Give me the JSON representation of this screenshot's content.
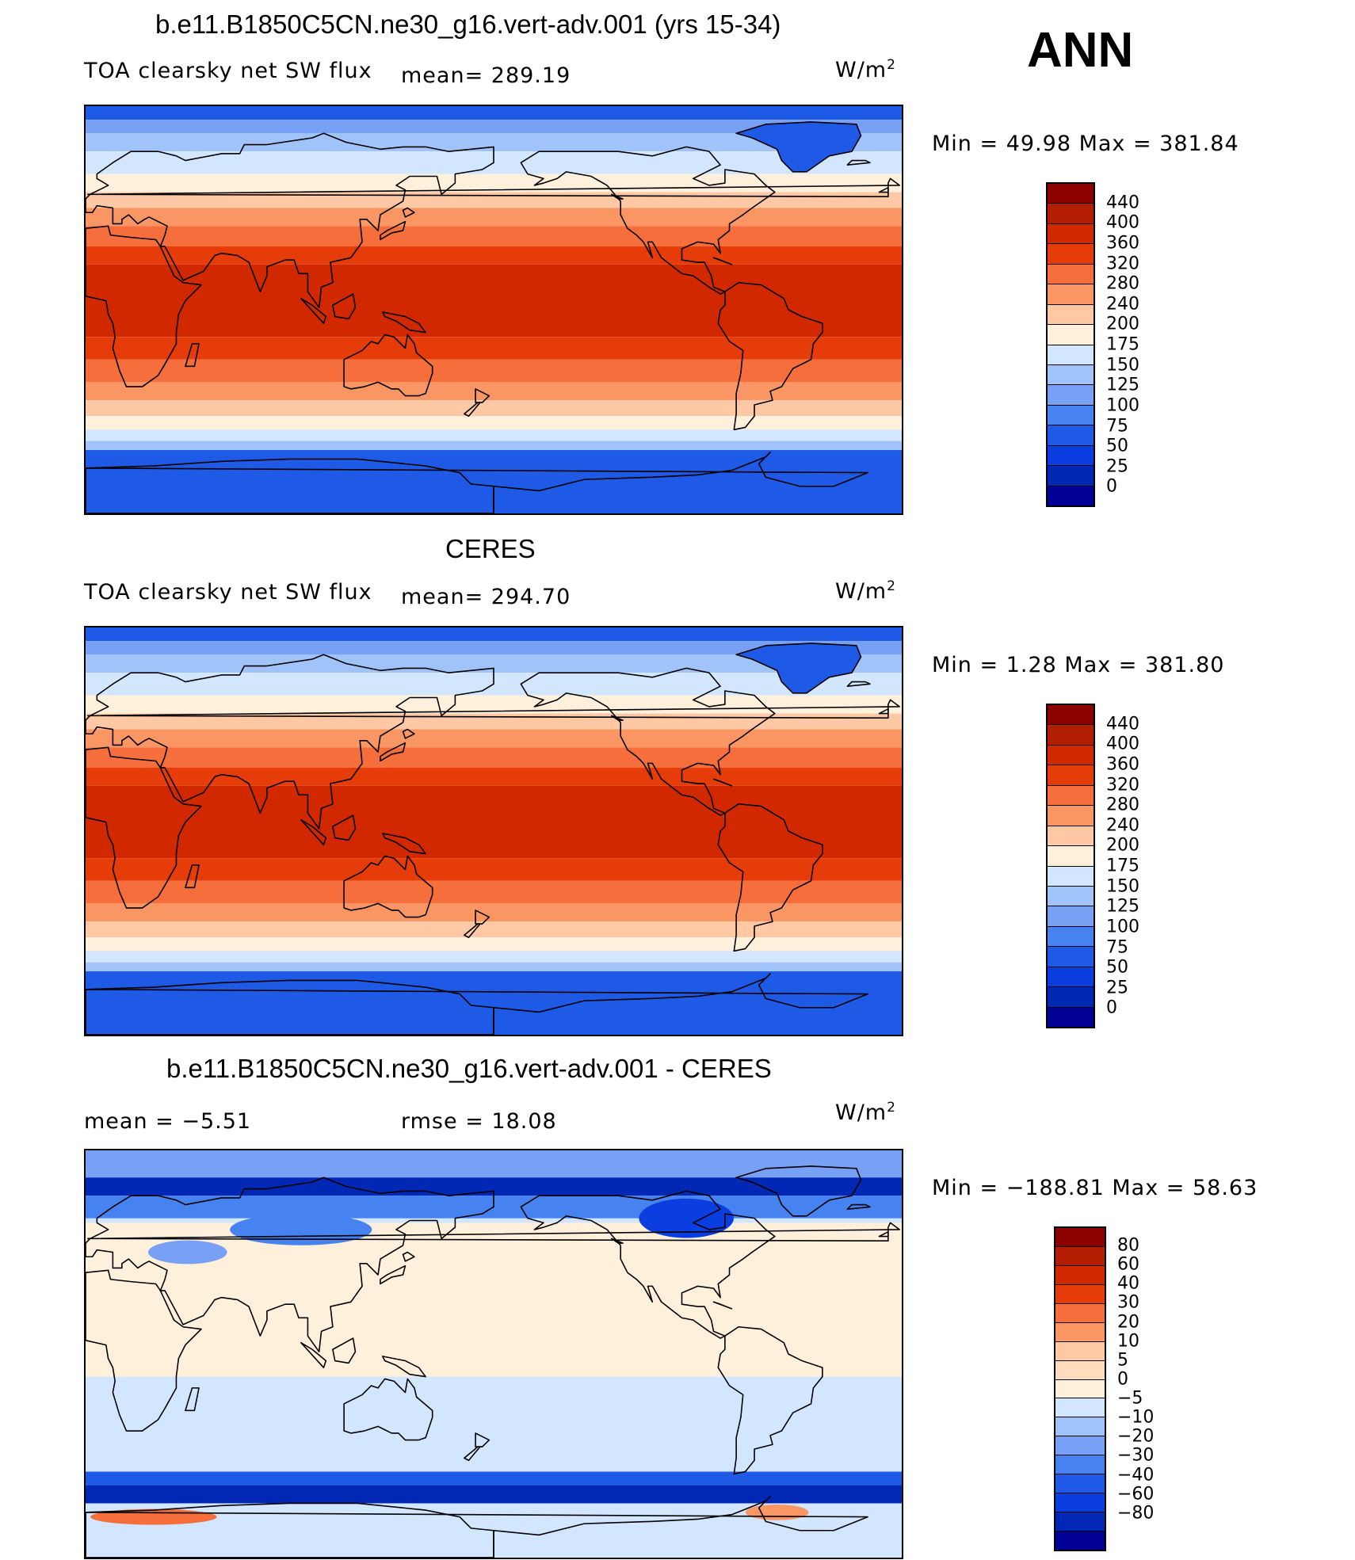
{
  "season": "ANN",
  "colors": {
    "flux_scale": [
      "#000096",
      "#0028b4",
      "#0a3ee0",
      "#1e5ae6",
      "#4682f0",
      "#78a0f5",
      "#a0c3fa",
      "#d2e6ff",
      "#fff0dc",
      "#ffc8a5",
      "#fa9664",
      "#f56e3c",
      "#e63c0a",
      "#d22800",
      "#b41e00",
      "#8c0000"
    ],
    "diff_scale": [
      "#000096",
      "#0028b4",
      "#0a3ee0",
      "#1e5ae6",
      "#4682f0",
      "#78a0f5",
      "#a0c3fa",
      "#d2e6ff",
      "#fff0dc",
      "#ffdcbe",
      "#ffc8a5",
      "#fa9664",
      "#f56e3c",
      "#e63c0a",
      "#d22800",
      "#b41e00",
      "#8c0000"
    ]
  },
  "panels": [
    {
      "title": "b.e11.B1850C5CN.ne30_g16.vert-adv.001 (yrs 15-34)",
      "left_label": "TOA clearsky net SW flux",
      "center_label": "mean=  289.19",
      "units_base": "W/m",
      "units_exp": "2",
      "minmax": "Min =   49.98 Max = 381.84",
      "map_kind": "model",
      "colorbar_labels": [
        "440",
        "400",
        "360",
        "320",
        "280",
        "240",
        "200",
        "175",
        "150",
        "125",
        "100",
        "75",
        "50",
        "25",
        "0"
      ]
    },
    {
      "title": "CERES",
      "left_label": "TOA clearsky net SW flux",
      "center_label": "mean=  294.70",
      "units_base": "W/m",
      "units_exp": "2",
      "minmax": "Min =    1.28 Max = 381.80",
      "map_kind": "obs",
      "colorbar_labels": [
        "440",
        "400",
        "360",
        "320",
        "280",
        "240",
        "200",
        "175",
        "150",
        "125",
        "100",
        "75",
        "50",
        "25",
        "0"
      ]
    },
    {
      "title": "b.e11.B1850C5CN.ne30_g16.vert-adv.001 - CERES",
      "left_label": "mean =   −5.51",
      "center_label": "rmse =   18.08",
      "units_base": "W/m",
      "units_exp": "2",
      "minmax": "Min = −188.81 Max =   58.63",
      "map_kind": "diff",
      "colorbar_labels": [
        "80",
        "60",
        "40",
        "30",
        "20",
        "10",
        "5",
        "0",
        "−5",
        "−10",
        "−20",
        "−30",
        "−40",
        "−60",
        "−80"
      ]
    }
  ]
}
